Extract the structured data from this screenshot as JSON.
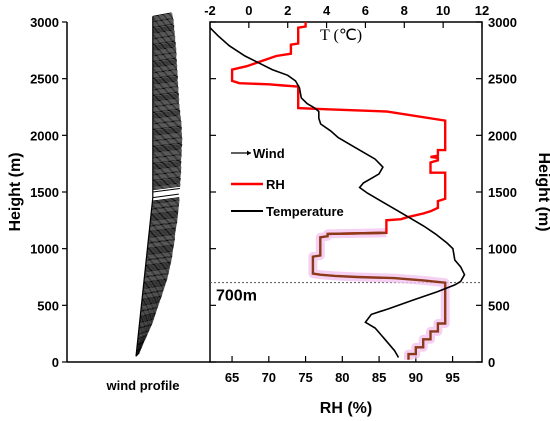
{
  "chart_data": [
    {
      "type": "wind-profile",
      "xlabel": "wind profile",
      "ylabel": "Height (m)",
      "ylim": [
        0,
        3000
      ],
      "yticks": [
        "0",
        "500",
        "1000",
        "1500",
        "2000",
        "2500",
        "3000"
      ],
      "series": [
        {
          "name": "Wind",
          "heights": [
            50,
            100,
            150,
            200,
            250,
            300,
            350,
            400,
            450,
            500,
            550,
            600,
            650,
            700,
            750,
            800,
            850,
            900,
            950,
            1000,
            1050,
            1100,
            1150,
            1200,
            1250,
            1300,
            1350,
            1400,
            1450,
            1500,
            1550,
            1600,
            1650,
            1700,
            1750,
            1800,
            1850,
            1900,
            1950,
            2000,
            2050,
            2100,
            2150,
            2200,
            2250,
            2300,
            2350,
            2400,
            2450,
            2500,
            2550,
            2600,
            2650,
            2700,
            2750,
            2800,
            2850,
            2900,
            2950,
            3000,
            3050
          ],
          "length": [
            0.13,
            0.2,
            0.27,
            0.35,
            0.42,
            0.5,
            0.55,
            0.6,
            0.65,
            0.7,
            0.76,
            0.8,
            0.85,
            0.9,
            0.93,
            0.95,
            0.98,
            1.0,
            1.0,
            1.02,
            1.03,
            1.02,
            1.03,
            1.05,
            1.05,
            1.05,
            1.05,
            1.05,
            1.0,
            1.04,
            1.05,
            1.06,
            1.08,
            1.08,
            1.08,
            1.1,
            1.1,
            1.12,
            1.12,
            1.1,
            1.1,
            1.08,
            1.05,
            1.03,
            1.0,
            1.0,
            0.98,
            0.97,
            0.95,
            0.95,
            0.93,
            0.92,
            0.9,
            0.9,
            0.88,
            0.86,
            0.84,
            0.82,
            0.8,
            0.78,
            0.72
          ]
        }
      ]
    },
    {
      "type": "line",
      "xlabel": "RH (%)",
      "x2label": "T (℃)",
      "ylabel": "Height (m)",
      "xlim": [
        62,
        99
      ],
      "x2lim": [
        -2,
        12
      ],
      "ylim": [
        0,
        3000
      ],
      "xticks": [
        "65",
        "70",
        "75",
        "80",
        "85",
        "90",
        "95"
      ],
      "x2ticks": [
        "-2",
        "0",
        "2",
        "4",
        "6",
        "8",
        "10",
        "12"
      ],
      "yticks": [
        "0",
        "500",
        "1000",
        "1500",
        "2000",
        "2500",
        "3000"
      ],
      "legend": [
        {
          "label": "Wind",
          "color": "#000000"
        },
        {
          "label": "RH",
          "color": "#ff0000"
        },
        {
          "label": "Temperature",
          "color": "#000000"
        }
      ],
      "reference_line": {
        "height": 700,
        "label": "700m"
      },
      "series": [
        {
          "name": "RH",
          "color": "#ff0000",
          "below_700_color": "#8b3a1a",
          "points": [
            [
              89,
              20
            ],
            [
              89,
              70
            ],
            [
              90,
              70
            ],
            [
              90,
              130
            ],
            [
              91,
              130
            ],
            [
              91,
              200
            ],
            [
              92,
              200
            ],
            [
              92,
              270
            ],
            [
              93,
              270
            ],
            [
              93,
              340
            ],
            [
              94,
              340
            ],
            [
              94,
              700
            ],
            [
              91,
              720
            ],
            [
              87,
              740
            ],
            [
              82,
              750
            ],
            [
              79,
              760
            ],
            [
              77,
              770
            ],
            [
              76,
              780
            ],
            [
              76,
              930
            ],
            [
              77,
              940
            ],
            [
              77,
              1100
            ],
            [
              78,
              1110
            ],
            [
              78,
              1130
            ],
            [
              86,
              1140
            ],
            [
              86,
              1250
            ],
            [
              88,
              1260
            ],
            [
              89,
              1280
            ],
            [
              91,
              1310
            ],
            [
              92,
              1330
            ],
            [
              93,
              1360
            ],
            [
              93,
              1420
            ],
            [
              94,
              1440
            ],
            [
              94,
              1670
            ],
            [
              92,
              1670
            ],
            [
              92,
              1760
            ],
            [
              93,
              1780
            ],
            [
              93,
              1800
            ],
            [
              92,
              1810
            ],
            [
              93,
              1820
            ],
            [
              93,
              1870
            ],
            [
              94,
              1870
            ],
            [
              94,
              2130
            ],
            [
              86,
              2210
            ],
            [
              78,
              2230
            ],
            [
              74,
              2240
            ],
            [
              74,
              2430
            ],
            [
              72,
              2440
            ],
            [
              70,
              2450
            ],
            [
              66,
              2460
            ],
            [
              65,
              2480
            ],
            [
              65,
              2580
            ],
            [
              67,
              2610
            ],
            [
              71,
              2700
            ],
            [
              73,
              2720
            ],
            [
              73,
              2800
            ],
            [
              74,
              2810
            ],
            [
              74,
              2950
            ],
            [
              75,
              2960
            ],
            [
              75,
              3000
            ]
          ]
        },
        {
          "name": "Temperature",
          "color": "#000000",
          "points": [
            [
              7.7,
              40
            ],
            [
              7.5,
              100
            ],
            [
              7.0,
              200
            ],
            [
              6.5,
              300
            ],
            [
              6.0,
              350
            ],
            [
              6.3,
              420
            ],
            [
              7.2,
              470
            ],
            [
              8.5,
              550
            ],
            [
              9.7,
              620
            ],
            [
              10.6,
              680
            ],
            [
              10.9,
              710
            ],
            [
              11.1,
              770
            ],
            [
              10.9,
              840
            ],
            [
              10.6,
              900
            ],
            [
              10.5,
              1000
            ],
            [
              10.2,
              1050
            ],
            [
              9.6,
              1130
            ],
            [
              9.0,
              1200
            ],
            [
              8.2,
              1280
            ],
            [
              7.6,
              1340
            ],
            [
              6.8,
              1420
            ],
            [
              6.1,
              1490
            ],
            [
              5.7,
              1540
            ],
            [
              5.9,
              1580
            ],
            [
              6.3,
              1620
            ],
            [
              6.7,
              1660
            ],
            [
              6.9,
              1720
            ],
            [
              6.5,
              1790
            ],
            [
              5.8,
              1860
            ],
            [
              5.2,
              1920
            ],
            [
              4.6,
              1980
            ],
            [
              4.2,
              2040
            ],
            [
              3.7,
              2100
            ],
            [
              3.6,
              2150
            ],
            [
              3.6,
              2210
            ],
            [
              3.4,
              2240
            ],
            [
              3.0,
              2280
            ],
            [
              2.7,
              2330
            ],
            [
              2.6,
              2420
            ],
            [
              2.4,
              2480
            ],
            [
              2.0,
              2530
            ],
            [
              1.2,
              2580
            ],
            [
              0.5,
              2640
            ],
            [
              -0.2,
              2700
            ],
            [
              -1.0,
              2790
            ],
            [
              -1.6,
              2880
            ],
            [
              -2.0,
              2950
            ]
          ]
        }
      ]
    }
  ]
}
